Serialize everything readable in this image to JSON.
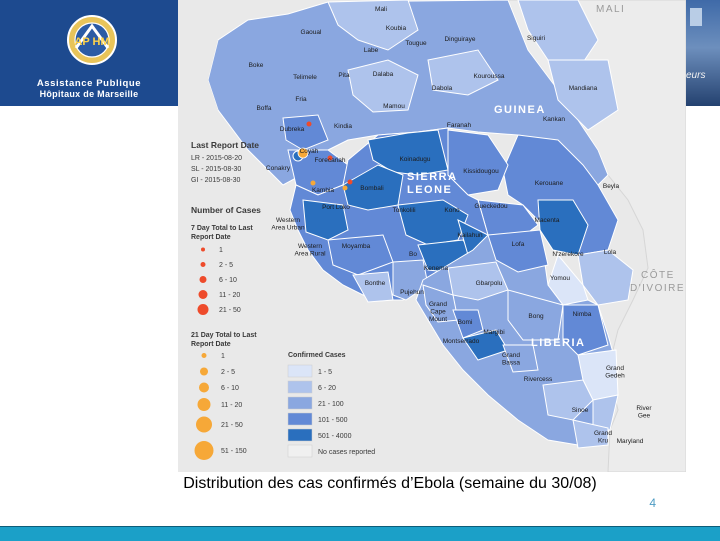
{
  "header": {
    "org_line1": "Assistance Publique",
    "org_line2": "Hôpitaux de Marseille",
    "logo_lettering": "AP HM",
    "photo_fragment": "eurs"
  },
  "map": {
    "neighbor_labels": [
      "MALI",
      "CÔTE",
      "D'IVOIRE"
    ],
    "country_labels": [
      "GUINEA",
      "SIERRA",
      "LEONE",
      "LIBERIA"
    ],
    "places": [
      "Mali",
      "Koubia",
      "Gaoual",
      "Labe",
      "Tougue",
      "Dinguiraye",
      "Siguiri",
      "Boke",
      "Telimele",
      "Pita",
      "Dalaba",
      "Kouroussa",
      "Mandiana",
      "Dabola",
      "Fria",
      "Mamou",
      "Boffa",
      "Faranah",
      "Kankan",
      "Dubreka",
      "Kindia",
      "Coyah",
      "Forecariah",
      "Conakry",
      "Koinadugu",
      "Kissidougou",
      "Kerouane",
      "Beyla",
      "Kambia",
      "Bombali",
      "Port Loko",
      "Tonkolili",
      "Kono",
      "Gueckedou",
      "Macenta",
      "Western Area Urban",
      "Western Area Rural",
      "Moyamba",
      "Kailahun",
      "Lofa",
      "N'zerekore",
      "Lola",
      "Bo",
      "Kenema",
      "Yomou",
      "Bonthe",
      "Pujehun",
      "Gbarpolu",
      "Grand Cape Mount",
      "Bomi",
      "Bong",
      "Nimba",
      "Margibi",
      "Montserrado",
      "Grand Bassa",
      "Rivercess",
      "Grand Gedeh",
      "Sinoe",
      "River Gee",
      "Grand Kru",
      "Maryland"
    ]
  },
  "legend": {
    "last_report_title": "Last Report Date",
    "last_report_lines": [
      "LR - 2015-08-20",
      "SL - 2015-08-30",
      "GI - 2015-08-30"
    ],
    "number_title": "Number of Cases",
    "seven_day_title": "7 Day Total to Last Report Date",
    "seven_day_bins": [
      "1",
      "2 - 5",
      "6 - 10",
      "11 - 20",
      "21 - 50"
    ],
    "twentyone_day_title": "21 Day Total to Last Report Date",
    "twentyone_day_bins": [
      "1",
      "2 - 5",
      "6 - 10",
      "11 - 20",
      "21 - 50",
      "51 - 150"
    ],
    "confirmed_title": "Confirmed Cases",
    "confirmed_bins": [
      "1 - 5",
      "6 - 20",
      "21 - 100",
      "101 - 500",
      "501 - 4000",
      "No cases reported"
    ],
    "confirmed_colors": [
      "#dbe5f8",
      "#aec3ec",
      "#8aa7e0",
      "#6289d6",
      "#2a6fbe",
      "#f0f0f0"
    ],
    "seven_day_color": "#ee4b2b",
    "twentyone_day_color": "#f6a838"
  },
  "caption": "Distribution des cas confirmés d’Ebola (semaine du 30/08)",
  "page_number": "4"
}
